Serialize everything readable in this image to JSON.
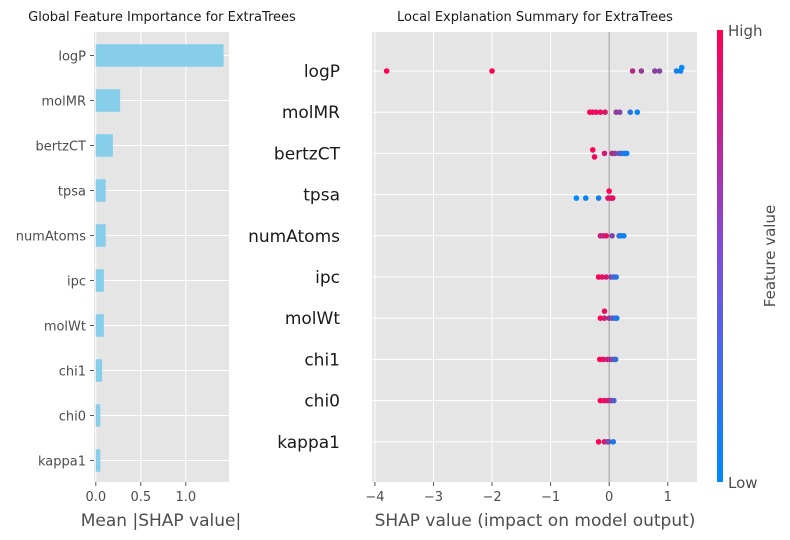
{
  "chart_data": [
    {
      "type": "bar",
      "orientation": "horizontal",
      "title": "Global Feature Importance for ExtraTrees",
      "xlabel": "Mean |SHAP value|",
      "ylabel": "",
      "categories": [
        "logP",
        "molMR",
        "bertzCT",
        "tpsa",
        "numAtoms",
        "ipc",
        "molWt",
        "chi1",
        "chi0",
        "kappa1"
      ],
      "values": [
        1.42,
        0.27,
        0.19,
        0.11,
        0.11,
        0.09,
        0.09,
        0.07,
        0.05,
        0.05
      ],
      "xlim": [
        -0.02,
        1.48
      ],
      "xticks": [
        0.0,
        0.5,
        1.0
      ],
      "xtick_labels": [
        "0.0",
        "0.5",
        "1.0"
      ],
      "bar_color": "#87ceeb",
      "grid": true
    },
    {
      "type": "scatter",
      "title": "Local Explanation Summary for ExtraTrees",
      "xlabel": "SHAP value (impact on model output)",
      "ylabel": "",
      "categories": [
        "logP",
        "molMR",
        "bertzCT",
        "tpsa",
        "numAtoms",
        "ipc",
        "molWt",
        "chi1",
        "chi0",
        "kappa1"
      ],
      "xlim": [
        -4.05,
        1.5
      ],
      "xticks": [
        -4,
        -3,
        -2,
        -1,
        0,
        1
      ],
      "xtick_labels": [
        "−4",
        "−3",
        "−2",
        "−1",
        "0",
        "1"
      ],
      "grid": true,
      "zero_line": true,
      "low_color": "#008afb",
      "high_color": "#ff0052",
      "colorbar": {
        "label": "Feature value",
        "high_label": "High",
        "low_label": "Low"
      },
      "series": [
        {
          "feature": "logP",
          "points": [
            {
              "x": -3.8,
              "dy": 0,
              "v": 1.0
            },
            {
              "x": -2.0,
              "dy": 0,
              "v": 1.0
            },
            {
              "x": 0.4,
              "dy": 0,
              "v": 0.7
            },
            {
              "x": 0.55,
              "dy": 0,
              "v": 0.6
            },
            {
              "x": 0.78,
              "dy": 0,
              "v": 0.55
            },
            {
              "x": 0.86,
              "dy": 0,
              "v": 0.5
            },
            {
              "x": 1.15,
              "dy": 0,
              "v": 0.1
            },
            {
              "x": 1.22,
              "dy": 0,
              "v": 0.05
            },
            {
              "x": 1.24,
              "dy": -1,
              "v": 0.0
            }
          ]
        },
        {
          "feature": "molMR",
          "points": [
            {
              "x": -0.33,
              "dy": 0,
              "v": 1.0
            },
            {
              "x": -0.28,
              "dy": 0,
              "v": 0.95
            },
            {
              "x": -0.22,
              "dy": 0,
              "v": 0.9
            },
            {
              "x": -0.15,
              "dy": 0,
              "v": 0.95
            },
            {
              "x": -0.07,
              "dy": 0,
              "v": 0.85
            },
            {
              "x": 0.12,
              "dy": 0,
              "v": 0.6
            },
            {
              "x": 0.18,
              "dy": 0,
              "v": 0.5
            },
            {
              "x": 0.36,
              "dy": 0,
              "v": 0.15
            },
            {
              "x": 0.48,
              "dy": 0,
              "v": 0.05
            }
          ]
        },
        {
          "feature": "bertzCT",
          "points": [
            {
              "x": -0.28,
              "dy": -1,
              "v": 1.0
            },
            {
              "x": -0.25,
              "dy": 1,
              "v": 0.95
            },
            {
              "x": -0.08,
              "dy": 0,
              "v": 0.8
            },
            {
              "x": 0.05,
              "dy": 0,
              "v": 0.7
            },
            {
              "x": 0.1,
              "dy": 0,
              "v": 0.55
            },
            {
              "x": 0.17,
              "dy": 0,
              "v": 0.35
            },
            {
              "x": 0.22,
              "dy": 0,
              "v": 0.2
            },
            {
              "x": 0.27,
              "dy": 0,
              "v": 0.1
            },
            {
              "x": 0.3,
              "dy": 0,
              "v": 0.05
            }
          ]
        },
        {
          "feature": "tpsa",
          "points": [
            {
              "x": -0.56,
              "dy": 1,
              "v": 0.0
            },
            {
              "x": -0.4,
              "dy": 1,
              "v": 0.05
            },
            {
              "x": -0.18,
              "dy": 1,
              "v": 0.1
            },
            {
              "x": 0.0,
              "dy": -1,
              "v": 1.0
            },
            {
              "x": 0.03,
              "dy": 1,
              "v": 0.95
            },
            {
              "x": 0.06,
              "dy": 1,
              "v": 0.9
            },
            {
              "x": -0.02,
              "dy": 1,
              "v": 0.85
            }
          ]
        },
        {
          "feature": "numAtoms",
          "points": [
            {
              "x": -0.15,
              "dy": 0,
              "v": 0.8
            },
            {
              "x": -0.1,
              "dy": 0,
              "v": 0.7
            },
            {
              "x": -0.05,
              "dy": 0,
              "v": 0.9
            },
            {
              "x": 0.05,
              "dy": 0,
              "v": 0.5
            },
            {
              "x": 0.17,
              "dy": 0,
              "v": 0.2
            },
            {
              "x": 0.2,
              "dy": 0,
              "v": 0.1
            },
            {
              "x": 0.25,
              "dy": 0,
              "v": 0.05
            }
          ]
        },
        {
          "feature": "ipc",
          "points": [
            {
              "x": -0.18,
              "dy": 0,
              "v": 1.0
            },
            {
              "x": -0.12,
              "dy": 0,
              "v": 0.9
            },
            {
              "x": -0.05,
              "dy": 0,
              "v": 0.85
            },
            {
              "x": 0.03,
              "dy": 0,
              "v": 0.5
            },
            {
              "x": 0.08,
              "dy": 0,
              "v": 0.3
            },
            {
              "x": 0.12,
              "dy": 0,
              "v": 0.15
            }
          ]
        },
        {
          "feature": "molWt",
          "points": [
            {
              "x": -0.08,
              "dy": -2,
              "v": 0.9
            },
            {
              "x": -0.15,
              "dy": 0,
              "v": 1.0
            },
            {
              "x": -0.08,
              "dy": 0,
              "v": 0.8
            },
            {
              "x": 0.0,
              "dy": 0,
              "v": 0.6
            },
            {
              "x": 0.05,
              "dy": 0,
              "v": 0.4
            },
            {
              "x": 0.1,
              "dy": 0,
              "v": 0.2
            },
            {
              "x": 0.13,
              "dy": 0,
              "v": 0.1
            }
          ]
        },
        {
          "feature": "chi1",
          "points": [
            {
              "x": -0.16,
              "dy": 0,
              "v": 1.0
            },
            {
              "x": -0.1,
              "dy": 0,
              "v": 0.9
            },
            {
              "x": -0.03,
              "dy": 0,
              "v": 0.8
            },
            {
              "x": 0.03,
              "dy": 0,
              "v": 0.6
            },
            {
              "x": 0.08,
              "dy": 0,
              "v": 0.4
            },
            {
              "x": 0.11,
              "dy": 0,
              "v": 0.2
            }
          ]
        },
        {
          "feature": "chi0",
          "points": [
            {
              "x": -0.15,
              "dy": 0,
              "v": 1.0
            },
            {
              "x": -0.08,
              "dy": 0,
              "v": 0.9
            },
            {
              "x": -0.02,
              "dy": 0,
              "v": 0.85
            },
            {
              "x": 0.03,
              "dy": 0,
              "v": 0.6
            },
            {
              "x": 0.08,
              "dy": 0,
              "v": 0.3
            }
          ]
        },
        {
          "feature": "kappa1",
          "points": [
            {
              "x": -0.18,
              "dy": 0,
              "v": 1.0
            },
            {
              "x": -0.08,
              "dy": 0,
              "v": 0.9
            },
            {
              "x": -0.03,
              "dy": 0,
              "v": 0.6
            },
            {
              "x": 0.0,
              "dy": 0,
              "v": 0.4
            },
            {
              "x": 0.07,
              "dy": 0,
              "v": 0.1
            }
          ]
        }
      ]
    }
  ]
}
